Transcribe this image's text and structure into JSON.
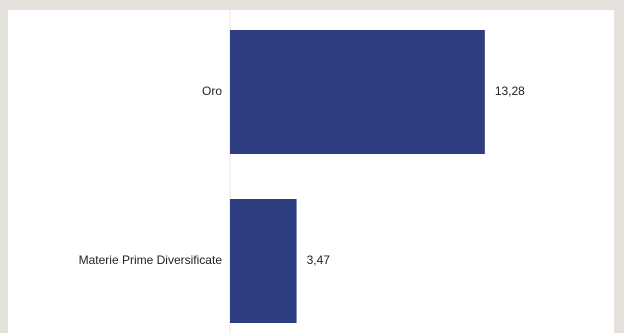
{
  "chart_data": {
    "type": "bar",
    "orientation": "horizontal",
    "categories": [
      "Oro",
      "Materie Prime Diversificate"
    ],
    "values": [
      13.28,
      3.47
    ],
    "value_labels": [
      "13,28",
      "3,47"
    ],
    "xlim": [
      0,
      18.5
    ],
    "grid": false,
    "colors": {
      "bar": "#2e3d80",
      "axis": "#e6e6e6",
      "text": "#222222",
      "page_background": "#e5e1dd",
      "panel_background": "#ffffff"
    }
  }
}
